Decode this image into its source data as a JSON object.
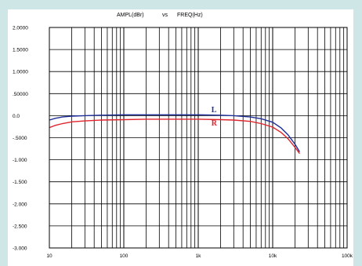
{
  "chart_data": {
    "type": "line",
    "title_left": "AMPL(dBr)",
    "title_mid": "vs",
    "title_right": "FREQ(Hz)",
    "xscale": "log",
    "xlim": [
      10,
      100000
    ],
    "ylim": [
      -3.0,
      2.0
    ],
    "grid": true,
    "x_tick_labels": [
      {
        "value": 10,
        "label": "10"
      },
      {
        "value": 100,
        "label": "100"
      },
      {
        "value": 1000,
        "label": "1k"
      },
      {
        "value": 10000,
        "label": "10k"
      },
      {
        "value": 100000,
        "label": "100k"
      }
    ],
    "y_tick_labels": [
      {
        "value": 2.0,
        "label": "2.0000"
      },
      {
        "value": 1.5,
        "label": "1.5000"
      },
      {
        "value": 1.0,
        "label": "1.0000"
      },
      {
        "value": 0.5,
        "label": ".50000"
      },
      {
        "value": 0.0,
        "label": "0.0"
      },
      {
        "value": -0.5,
        "label": "-.5000"
      },
      {
        "value": -1.0,
        "label": "-1.000"
      },
      {
        "value": -1.5,
        "label": "-1.500"
      },
      {
        "value": -2.0,
        "label": "-2.000"
      },
      {
        "value": -2.5,
        "label": "-2.500"
      },
      {
        "value": -3.0,
        "label": "-3.000"
      }
    ],
    "series": [
      {
        "name": "L",
        "color": "#1f2f9a",
        "label_at": {
          "x": 1500,
          "y": 0.08
        },
        "x": [
          10,
          12,
          15,
          20,
          30,
          50,
          100,
          200,
          500,
          1000,
          2000,
          3000,
          5000,
          7000,
          10000,
          13000,
          16000,
          20000,
          23000
        ],
        "y": [
          -0.1,
          -0.06,
          -0.03,
          -0.01,
          0.0,
          0.01,
          0.02,
          0.02,
          0.02,
          0.02,
          0.01,
          0.0,
          -0.03,
          -0.07,
          -0.15,
          -0.28,
          -0.43,
          -0.65,
          -0.82
        ]
      },
      {
        "name": "R",
        "color": "#e0242c",
        "label_at": {
          "x": 1500,
          "y": -0.22
        },
        "x": [
          10,
          12,
          15,
          20,
          30,
          50,
          100,
          200,
          500,
          1000,
          2000,
          3000,
          5000,
          7000,
          10000,
          13000,
          16000,
          20000,
          23000
        ],
        "y": [
          -0.27,
          -0.22,
          -0.18,
          -0.14,
          -0.12,
          -0.1,
          -0.09,
          -0.08,
          -0.08,
          -0.08,
          -0.09,
          -0.1,
          -0.13,
          -0.18,
          -0.26,
          -0.38,
          -0.52,
          -0.72,
          -0.86
        ]
      }
    ]
  }
}
